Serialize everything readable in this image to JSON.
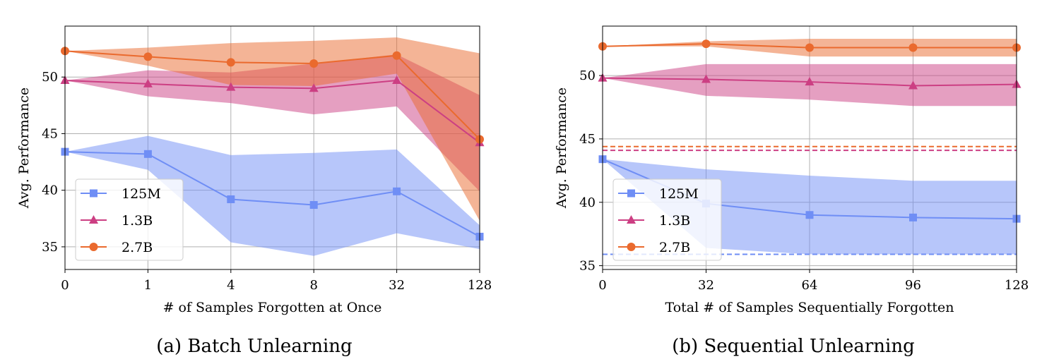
{
  "chart_data": [
    {
      "type": "line",
      "title": "(a) Batch Unlearning",
      "xlabel": "# of Samples Forgotten at Once",
      "ylabel": "Avg. Performance",
      "categories": [
        "0",
        "1",
        "4",
        "8",
        "32",
        "128"
      ],
      "ylim": [
        33,
        54.5
      ],
      "yticks": [
        35,
        40,
        45,
        50
      ],
      "grid": true,
      "legend_position": "lower-left",
      "series": [
        {
          "name": "125M",
          "color": "#6f8ef5",
          "marker": "square",
          "values": [
            43.4,
            43.2,
            39.2,
            38.7,
            39.9,
            35.9
          ],
          "lower": [
            43.4,
            41.8,
            35.4,
            34.2,
            36.2,
            34.8
          ],
          "upper": [
            43.4,
            44.8,
            43.1,
            43.3,
            43.6,
            36.9
          ]
        },
        {
          "name": "1.3B",
          "color": "#cc3f83",
          "marker": "triangle",
          "values": [
            49.7,
            49.4,
            49.1,
            49.0,
            49.7,
            44.2
          ],
          "lower": [
            49.7,
            48.3,
            47.7,
            46.7,
            47.4,
            39.9
          ],
          "upper": [
            49.7,
            50.6,
            50.4,
            51.2,
            52.0,
            48.4
          ]
        },
        {
          "name": "2.7B",
          "color": "#ea6a2e",
          "marker": "circle",
          "values": [
            52.3,
            51.8,
            51.3,
            51.2,
            51.9,
            44.5
          ],
          "lower": [
            52.3,
            51.0,
            49.3,
            49.2,
            50.3,
            37.3
          ],
          "upper": [
            52.3,
            52.6,
            53.0,
            53.2,
            53.5,
            52.1
          ]
        }
      ]
    },
    {
      "type": "line",
      "title": "(b) Sequential Unlearning",
      "xlabel": "Total # of Samples Sequentially Forgotten",
      "ylabel": "Avg. Performance",
      "categories": [
        "0",
        "32",
        "64",
        "96",
        "128"
      ],
      "ylim": [
        34.7,
        53.9
      ],
      "yticks": [
        35,
        40,
        45,
        50
      ],
      "grid": true,
      "legend_position": "lower-left",
      "series": [
        {
          "name": "125M",
          "color": "#6f8ef5",
          "marker": "square",
          "values": [
            43.4,
            39.9,
            39.0,
            38.8,
            38.7
          ],
          "lower": [
            43.4,
            36.4,
            35.9,
            35.9,
            35.9
          ],
          "upper": [
            43.4,
            42.6,
            42.1,
            41.7,
            41.7
          ],
          "baseline": 35.9
        },
        {
          "name": "1.3B",
          "color": "#cc3f83",
          "marker": "triangle",
          "values": [
            49.8,
            49.7,
            49.5,
            49.2,
            49.3
          ],
          "lower": [
            49.8,
            48.4,
            48.1,
            47.6,
            47.6
          ],
          "upper": [
            49.8,
            50.9,
            50.9,
            50.9,
            50.9
          ],
          "baseline": 44.1
        },
        {
          "name": "2.7B",
          "color": "#ea6a2e",
          "marker": "circle",
          "values": [
            52.3,
            52.5,
            52.2,
            52.2,
            52.2
          ],
          "lower": [
            52.3,
            52.3,
            51.5,
            51.5,
            51.5
          ],
          "upper": [
            52.3,
            52.7,
            52.9,
            52.9,
            52.9
          ],
          "baseline": 44.4
        }
      ]
    }
  ]
}
